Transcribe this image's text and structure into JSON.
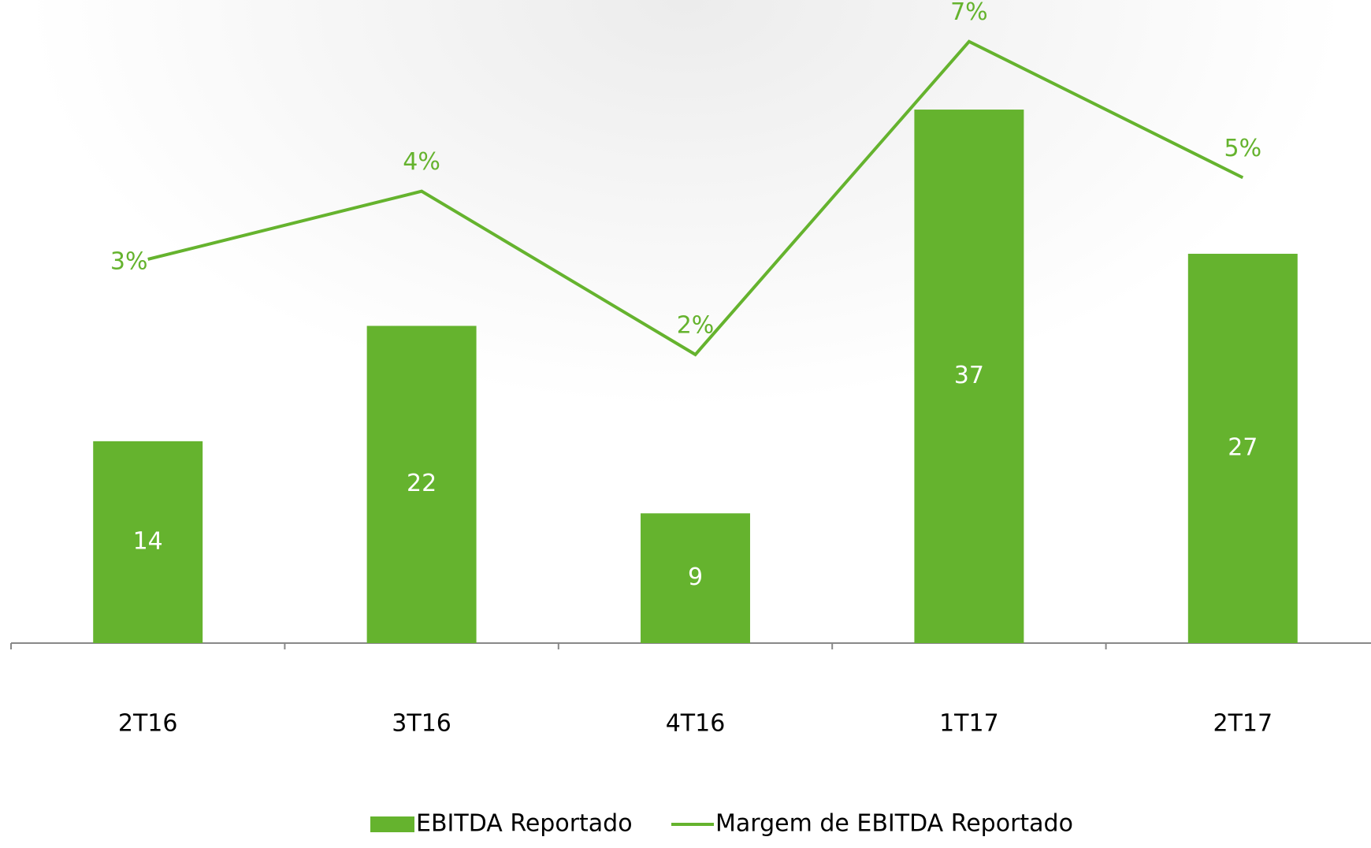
{
  "chart_data": {
    "type": "bar_line",
    "categories": [
      "2T16",
      "3T16",
      "4T16",
      "1T17",
      "2T17"
    ],
    "series": [
      {
        "name": "EBITDA Reportado",
        "type": "bar",
        "color": "#65b32e",
        "values": [
          14,
          22,
          9,
          37,
          27
        ]
      },
      {
        "name": "Margem de EBITDA Reportado",
        "type": "line",
        "axis": "y2",
        "color": "#65b32e",
        "values": [
          3.4,
          4.4,
          2.0,
          6.6,
          4.6
        ],
        "value_labels": [
          "3%",
          "4%",
          "2%",
          "7%",
          "5%"
        ]
      }
    ],
    "ylim": [
      0,
      44.6
    ],
    "y2lim": [
      -2.24,
      7.21
    ],
    "legend": "bottom"
  }
}
